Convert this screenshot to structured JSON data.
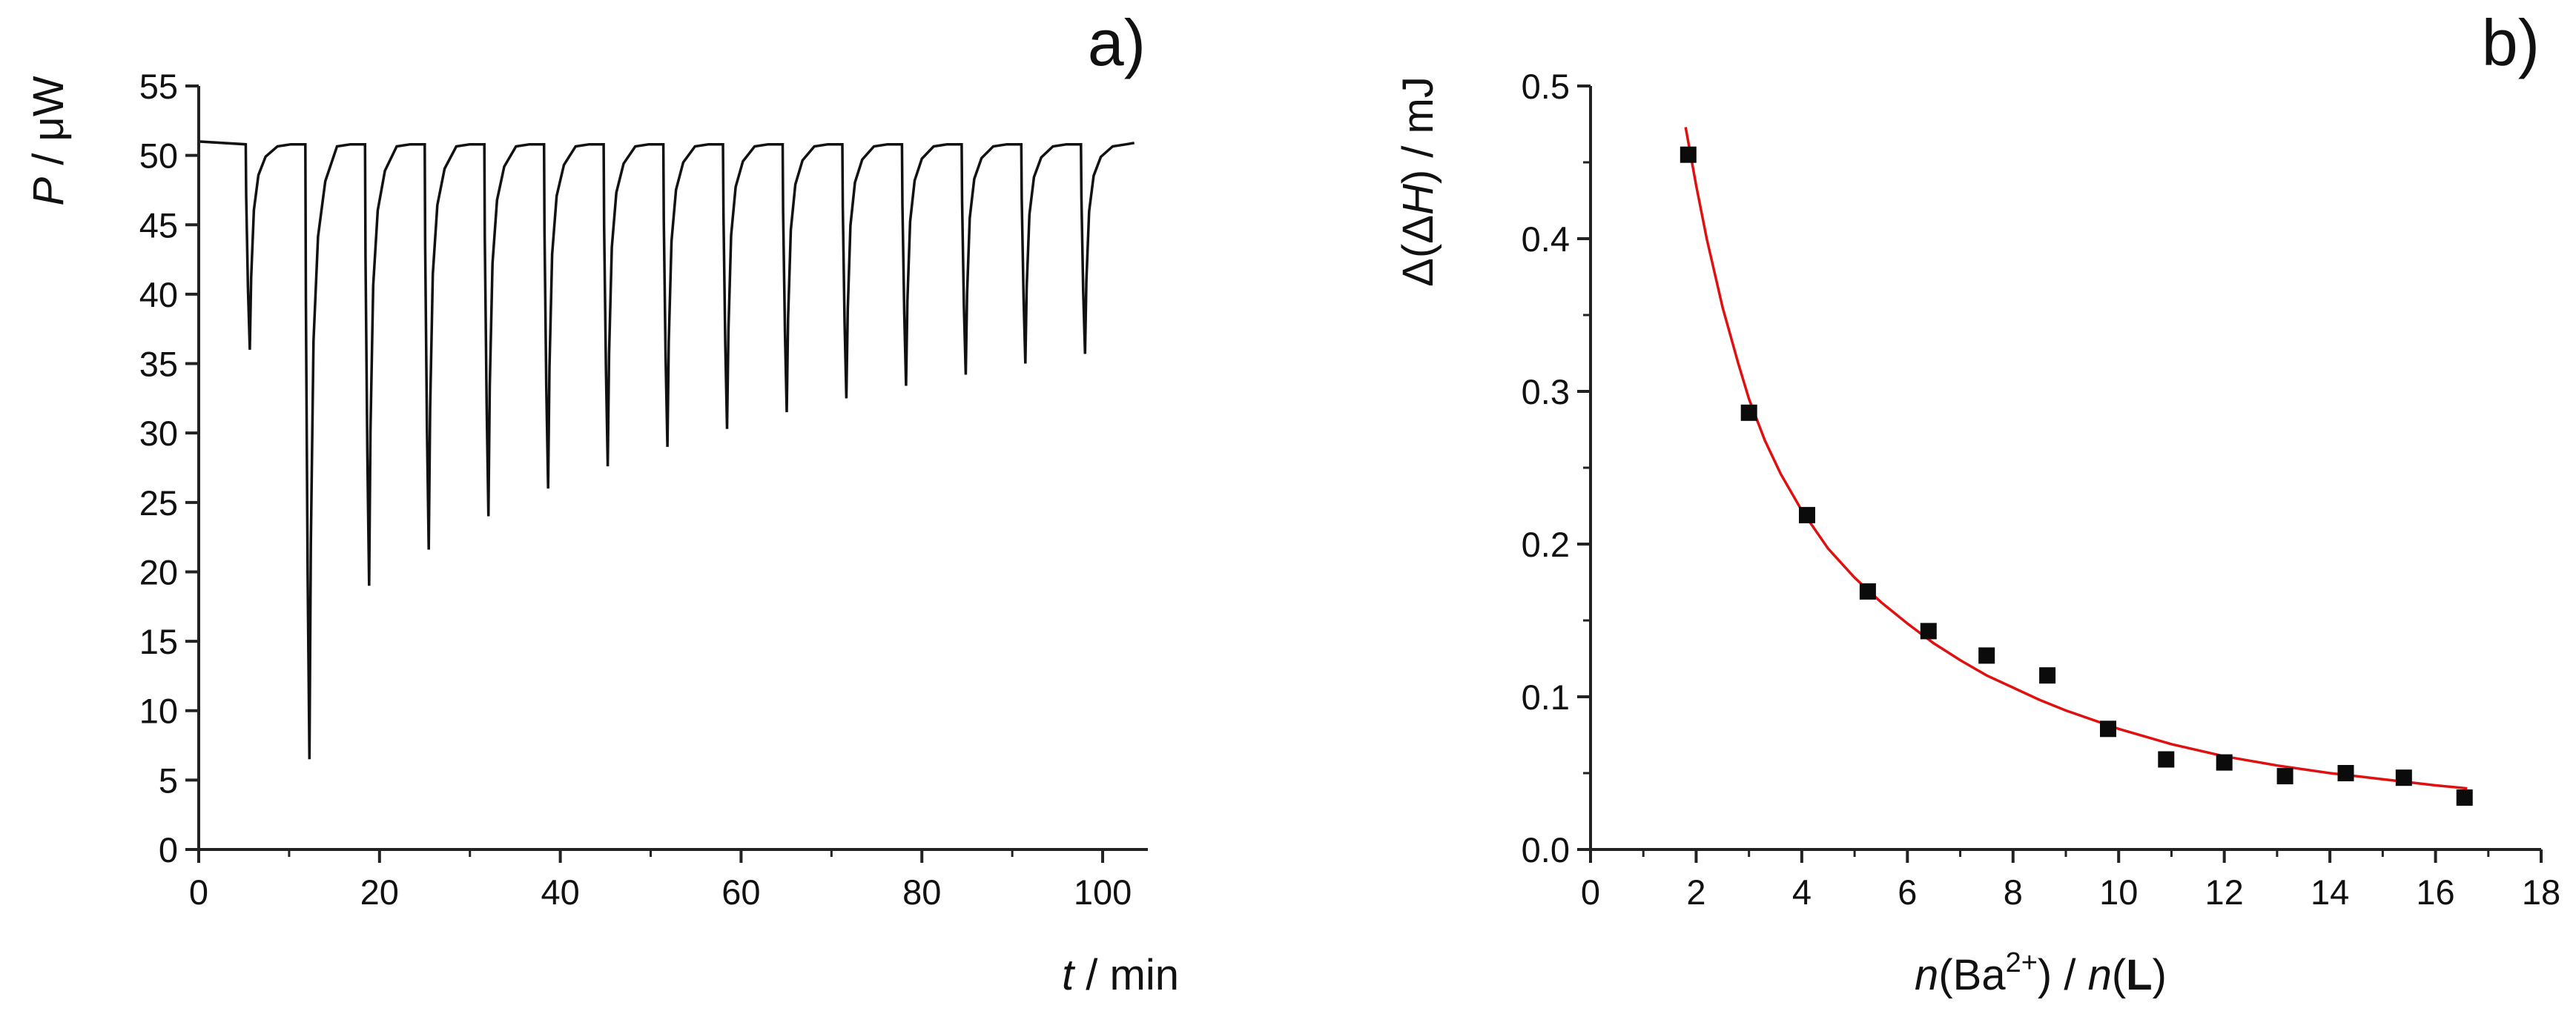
{
  "chart_data": [
    {
      "type": "line",
      "panel_label": "a)",
      "series": [
        {
          "name": "thermogram",
          "color": "#111111",
          "baseline": 51.0,
          "start_level": 51.0,
          "end_level": 50.9,
          "x_end": 103.5,
          "x_first_injection": 5.2,
          "injection_interval": 6.6,
          "peak_minima": [
            36,
            6.5,
            19,
            21.6,
            24,
            26,
            27.6,
            29,
            30.3,
            31.5,
            32.5,
            33.4,
            34.2,
            35,
            35.7
          ]
        }
      ],
      "xlabel": {
        "italic": "t",
        "rest": " / min"
      },
      "ylabel": {
        "italic": "P",
        "rest": " / μW"
      },
      "xlim": [
        0,
        105
      ],
      "ylim": [
        0,
        55
      ],
      "x_ticks": [
        0,
        20,
        40,
        60,
        80,
        100
      ],
      "x_tick_labels": [
        "0",
        "20",
        "40",
        "60",
        "80",
        "100"
      ],
      "y_ticks": [
        0,
        5,
        10,
        15,
        20,
        25,
        30,
        35,
        40,
        45,
        50,
        55
      ],
      "y_tick_labels": [
        "0",
        "5",
        "10",
        "15",
        "20",
        "25",
        "30",
        "35",
        "40",
        "45",
        "50",
        "55"
      ]
    },
    {
      "type": "scatter",
      "panel_label": "b)",
      "series": [
        {
          "name": "experimental",
          "color": "#0b0b0b",
          "x": [
            1.85,
            3.0,
            4.1,
            5.25,
            6.4,
            7.5,
            8.65,
            9.8,
            10.9,
            12.0,
            13.15,
            14.3,
            15.4,
            16.55
          ],
          "y": [
            0.455,
            0.286,
            0.219,
            0.169,
            0.143,
            0.127,
            0.114,
            0.079,
            0.059,
            0.057,
            0.048,
            0.05,
            0.047,
            0.034
          ]
        },
        {
          "name": "fit",
          "color": "#e01010",
          "x": [
            1.8,
            2.0,
            2.2,
            2.5,
            2.8,
            3.0,
            3.3,
            3.6,
            4.0,
            4.5,
            5.0,
            5.5,
            6.0,
            6.5,
            7.0,
            7.5,
            8.0,
            8.5,
            9.0,
            9.5,
            10.0,
            11.0,
            12.0,
            13.0,
            14.0,
            15.0,
            16.0,
            16.6
          ],
          "y": [
            0.473,
            0.435,
            0.4,
            0.355,
            0.318,
            0.295,
            0.268,
            0.246,
            0.222,
            0.197,
            0.178,
            0.162,
            0.148,
            0.135,
            0.124,
            0.114,
            0.106,
            0.098,
            0.091,
            0.085,
            0.079,
            0.069,
            0.061,
            0.055,
            0.05,
            0.046,
            0.042,
            0.04
          ]
        }
      ],
      "xlabel": {
        "pre": "n",
        "paren": "(Ba",
        "sup": "2+",
        "mid": ") / ",
        "pre2": "n",
        "paren2": "(",
        "bold": "L",
        "close": ")"
      },
      "ylabel": {
        "pre": "Δ(Δ",
        "italic": "H",
        "rest": ") / mJ"
      },
      "xlim": [
        0,
        18
      ],
      "ylim": [
        0.0,
        0.5
      ],
      "x_ticks": [
        0,
        2,
        4,
        6,
        8,
        10,
        12,
        14,
        16,
        18
      ],
      "x_tick_labels": [
        "0",
        "2",
        "4",
        "6",
        "8",
        "10",
        "12",
        "14",
        "16",
        "18"
      ],
      "y_ticks": [
        0.0,
        0.1,
        0.2,
        0.3,
        0.4,
        0.5
      ],
      "y_tick_labels": [
        "0.0",
        "0.1",
        "0.2",
        "0.3",
        "0.4",
        "0.5"
      ]
    }
  ]
}
